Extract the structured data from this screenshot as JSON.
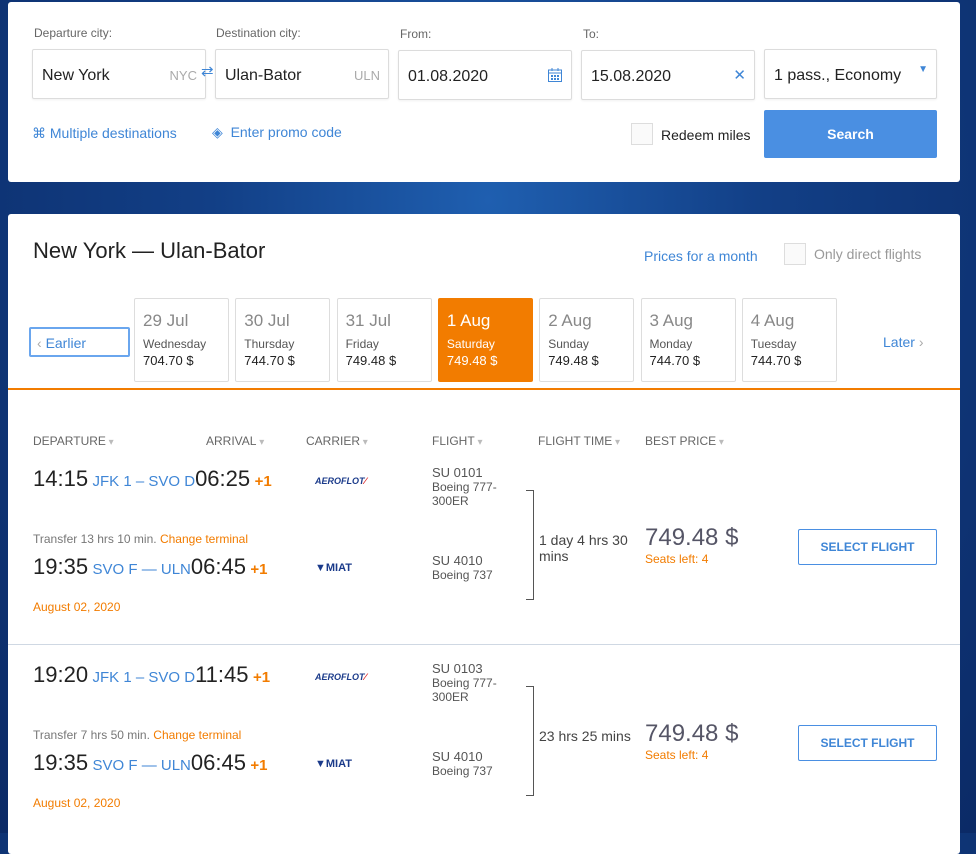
{
  "search": {
    "departure_label": "Departure city:",
    "departure_value": "New York",
    "departure_code": "NYC",
    "destination_label": "Destination city:",
    "destination_value": "Ulan-Bator",
    "destination_code": "ULN",
    "from_label": "From:",
    "from_value": "01.08.2020",
    "to_label": "To:",
    "to_value": "15.08.2020",
    "passengers_value": "1 pass., Economy",
    "multiple_destinations": "Multiple destinations",
    "promo_code": "Enter promo code",
    "redeem_miles": "Redeem miles",
    "search_button": "Search"
  },
  "results": {
    "title": "New York — Ulan-Bator",
    "prices_month": "Prices for a month",
    "direct_only": "Only direct flights",
    "earlier": "Earlier",
    "later": "Later",
    "days": [
      {
        "date": "29 Jul",
        "weekday": "Wednesday",
        "price": "704.70 $"
      },
      {
        "date": "30 Jul",
        "weekday": "Thursday",
        "price": "744.70 $"
      },
      {
        "date": "31 Jul",
        "weekday": "Friday",
        "price": "749.48 $"
      },
      {
        "date": "1 Aug",
        "weekday": "Saturday",
        "price": "749.48 $",
        "selected": true
      },
      {
        "date": "2 Aug",
        "weekday": "Sunday",
        "price": "749.48 $"
      },
      {
        "date": "3 Aug",
        "weekday": "Monday",
        "price": "744.70 $"
      },
      {
        "date": "4 Aug",
        "weekday": "Tuesday",
        "price": "744.70 $"
      }
    ],
    "columns": [
      "DEPARTURE",
      "ARRIVAL",
      "CARRIER",
      "FLIGHT",
      "FLIGHT TIME",
      "BEST PRICE"
    ],
    "flights": [
      {
        "legs": [
          {
            "dep": "14:15",
            "route": "JFK 1 – SVO D",
            "arr": "06:25",
            "plus": "+1",
            "carrier": "AEROFLOT",
            "flight": "SU 0101",
            "aircraft": "Boeing 777-300ER"
          },
          {
            "dep": "19:35",
            "route": "SVO F — ULN",
            "arr": "06:45",
            "plus": "+1",
            "carrier": "MIAT",
            "flight": "SU 4010",
            "aircraft": "Boeing 737"
          }
        ],
        "transfer": "Transfer 13 hrs 10 min.",
        "change_terminal": "Change terminal",
        "date": "August 02, 2020",
        "duration": "1 day 4 hrs 30 mins",
        "price": "749.48 $",
        "seats": "Seats left: 4",
        "select": "SELECT FLIGHT"
      },
      {
        "legs": [
          {
            "dep": "19:20",
            "route": "JFK 1 – SVO D",
            "arr": "11:45",
            "plus": "+1",
            "carrier": "AEROFLOT",
            "flight": "SU 0103",
            "aircraft": "Boeing 777-300ER"
          },
          {
            "dep": "19:35",
            "route": "SVO F — ULN",
            "arr": "06:45",
            "plus": "+1",
            "carrier": "MIAT",
            "flight": "SU 4010",
            "aircraft": "Boeing 737"
          }
        ],
        "transfer": "Transfer 7 hrs 50 min.",
        "change_terminal": "Change terminal",
        "date": "August 02, 2020",
        "duration": "23 hrs 25 mins",
        "price": "749.48 $",
        "seats": "Seats left: 4",
        "select": "SELECT FLIGHT"
      }
    ]
  },
  "colors": {
    "accent": "#4a8fe2",
    "selected_day": "#f27c00",
    "link": "#3f86d6"
  }
}
